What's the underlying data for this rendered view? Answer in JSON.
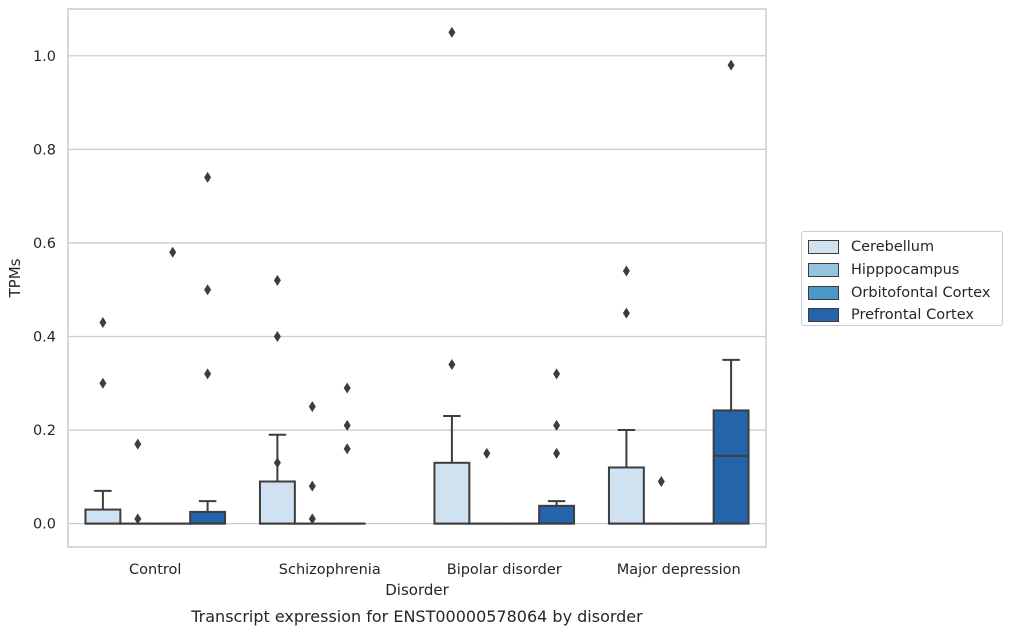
{
  "chart_data": {
    "type": "box",
    "title": "Transcript expression for ENST00000578064 by disorder",
    "xlabel": "Disorder",
    "ylabel": "TPMs",
    "ylim": [
      -0.05,
      1.1
    ],
    "yticks": [
      0.0,
      0.2,
      0.4,
      0.6,
      0.8,
      1.0
    ],
    "ytick_labels": [
      "0.0",
      "0.2",
      "0.4",
      "0.6",
      "0.8",
      "1.0"
    ],
    "grid": "horizontal",
    "legend_position": "right",
    "categories": [
      "Control",
      "Schizophrenia",
      "Bipolar disorder",
      "Major depression"
    ],
    "series": [
      {
        "name": "Cerebellum",
        "color": "#d0e1f2",
        "boxes": [
          {
            "q1": 0.0,
            "median": 0.0,
            "q3": 0.03,
            "whisker_low": 0.0,
            "whisker_high": 0.07,
            "outliers": [
              0.3,
              0.43
            ]
          },
          {
            "q1": 0.0,
            "median": 0.0,
            "q3": 0.09,
            "whisker_low": 0.0,
            "whisker_high": 0.19,
            "outliers": [
              0.13,
              0.4,
              0.52
            ]
          },
          {
            "q1": 0.0,
            "median": 0.0,
            "q3": 0.13,
            "whisker_low": 0.0,
            "whisker_high": 0.23,
            "outliers": [
              0.34,
              1.05
            ]
          },
          {
            "q1": 0.0,
            "median": 0.0,
            "q3": 0.12,
            "whisker_low": 0.0,
            "whisker_high": 0.2,
            "outliers": [
              0.45,
              0.54
            ]
          }
        ]
      },
      {
        "name": "Hipppocampus",
        "color": "#94c4df",
        "boxes": [
          {
            "q1": 0.0,
            "median": 0.0,
            "q3": 0.0,
            "whisker_low": 0.0,
            "whisker_high": 0.0,
            "outliers": [
              0.01,
              0.17
            ]
          },
          {
            "q1": 0.0,
            "median": 0.0,
            "q3": 0.0,
            "whisker_low": 0.0,
            "whisker_high": 0.0,
            "outliers": [
              0.01,
              0.08,
              0.25
            ]
          },
          {
            "q1": 0.0,
            "median": 0.0,
            "q3": 0.0,
            "whisker_low": 0.0,
            "whisker_high": 0.0,
            "outliers": [
              0.15
            ]
          },
          {
            "q1": 0.0,
            "median": 0.0,
            "q3": 0.0,
            "whisker_low": 0.0,
            "whisker_high": 0.0,
            "outliers": [
              0.09
            ]
          }
        ]
      },
      {
        "name": "Orbitofontal Cortex",
        "color": "#4a98c9",
        "boxes": [
          {
            "q1": 0.0,
            "median": 0.0,
            "q3": 0.0,
            "whisker_low": 0.0,
            "whisker_high": 0.0,
            "outliers": [
              0.58
            ]
          },
          {
            "q1": 0.0,
            "median": 0.0,
            "q3": 0.0,
            "whisker_low": 0.0,
            "whisker_high": 0.0,
            "outliers": [
              0.16,
              0.21,
              0.29
            ]
          },
          {
            "q1": 0.0,
            "median": 0.0,
            "q3": 0.0,
            "whisker_low": 0.0,
            "whisker_high": 0.0,
            "outliers": []
          },
          {
            "q1": 0.0,
            "median": 0.0,
            "q3": 0.0,
            "whisker_low": 0.0,
            "whisker_high": 0.0,
            "outliers": []
          }
        ]
      },
      {
        "name": "Prefrontal Cortex",
        "color": "#2464aa",
        "boxes": [
          {
            "q1": 0.0,
            "median": 0.0,
            "q3": 0.025,
            "whisker_low": 0.0,
            "whisker_high": 0.048,
            "outliers": [
              0.32,
              0.5,
              0.74
            ]
          },
          null,
          {
            "q1": 0.0,
            "median": 0.0,
            "q3": 0.038,
            "whisker_low": 0.0,
            "whisker_high": 0.048,
            "outliers": [
              0.15,
              0.21,
              0.32
            ]
          },
          {
            "q1": 0.0,
            "median": 0.145,
            "q3": 0.242,
            "whisker_low": 0.0,
            "whisker_high": 0.35,
            "outliers": [
              0.98
            ]
          }
        ]
      }
    ]
  }
}
